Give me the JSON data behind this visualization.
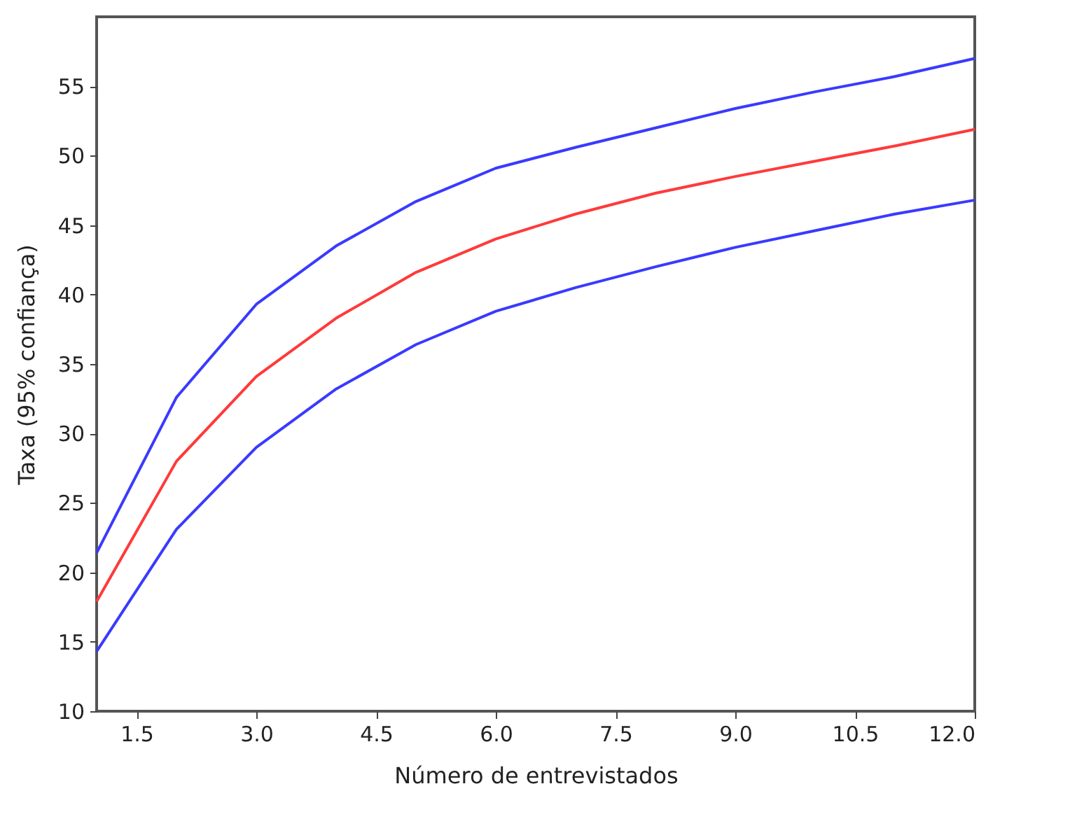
{
  "chart_data": {
    "type": "line",
    "xlabel": "Número de entrevistados",
    "ylabel": "Taxa (95% confiança)",
    "x": [
      1,
      2,
      3,
      4,
      5,
      6,
      7,
      8,
      9,
      10,
      11,
      12
    ],
    "series": [
      {
        "color": "#3a3aff",
        "values": [
          21.4,
          32.6,
          39.3,
          43.5,
          46.7,
          49.1,
          50.6,
          52,
          53.4,
          54.6,
          55.7,
          57
        ]
      },
      {
        "color": "#ff3a3a",
        "values": [
          17.9,
          28,
          34.1,
          38.3,
          41.6,
          44,
          45.8,
          47.3,
          48.5,
          49.6,
          50.7,
          51.9
        ]
      },
      {
        "color": "#3a3aff",
        "values": [
          14.3,
          23.1,
          29,
          33.2,
          36.4,
          38.8,
          40.5,
          42,
          43.4,
          44.6,
          45.8,
          46.8
        ]
      }
    ],
    "xlim": [
      1,
      12
    ],
    "xticks": [
      1.5,
      {
        "value": 3,
        "label": "3.0"
      },
      4.5,
      {
        "value": 6,
        "label": "6.0"
      },
      7.5,
      {
        "value": 9,
        "label": "9.0"
      },
      10.5,
      {
        "value": 12,
        "label": "12.0"
      }
    ],
    "ylim": [
      10,
      60
    ],
    "yticks": [
      10,
      15,
      20,
      25,
      30,
      35,
      40,
      45,
      50,
      55
    ],
    "grid": false,
    "marker": "none",
    "line_style": "solid"
  }
}
